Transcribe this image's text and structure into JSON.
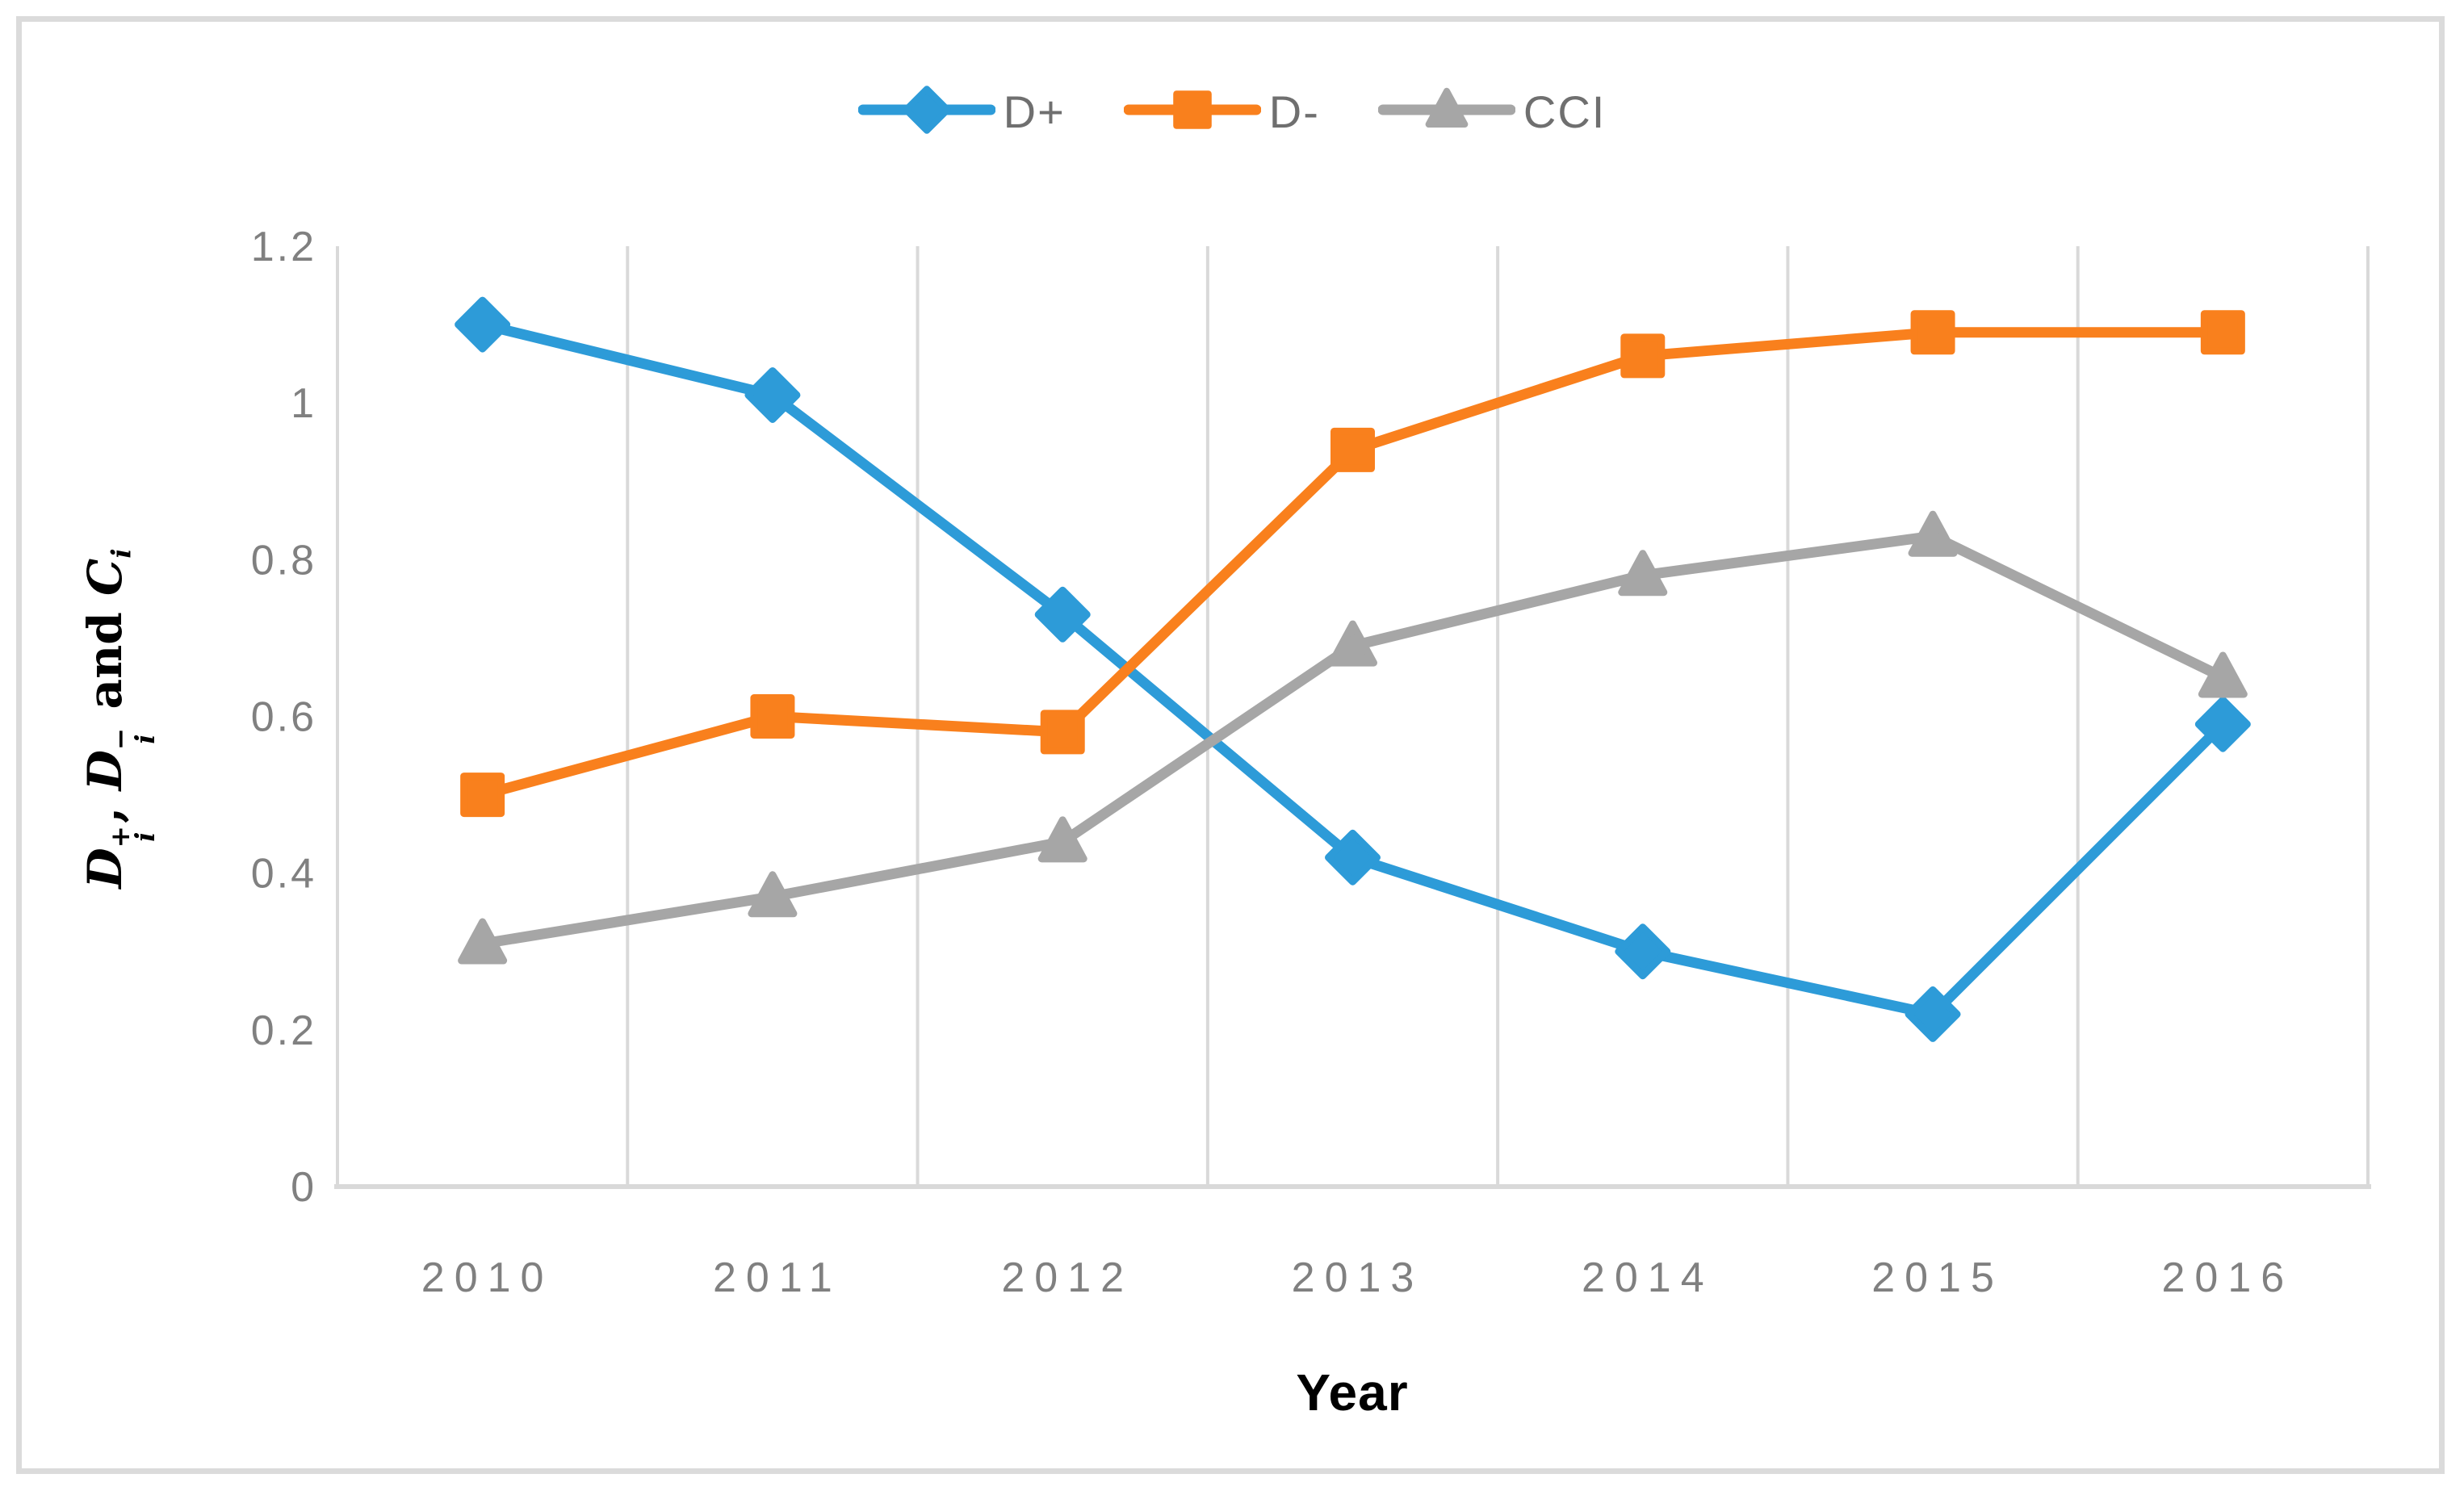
{
  "figure": {
    "background_color": "#FFFFFF",
    "border_color": "#DBDBDB"
  },
  "chart_data": {
    "type": "line",
    "title": "",
    "xlabel": "Year",
    "ylabel": "Di+, Di- and Ci",
    "ylabel_parts": [
      {
        "style": "var",
        "text": "D"
      },
      {
        "style": "stack",
        "sup": "+",
        "sub": "i"
      },
      {
        "style": "plain",
        "text": ", "
      },
      {
        "style": "var",
        "text": "D"
      },
      {
        "style": "stack",
        "sup": "−",
        "sub": "i"
      },
      {
        "style": "plain",
        "text": " and "
      },
      {
        "style": "var",
        "text": "C"
      },
      {
        "style": "sub",
        "text": "i"
      }
    ],
    "categories": [
      "2010",
      "2011",
      "2012",
      "2013",
      "2014",
      "2015",
      "2016"
    ],
    "series": [
      {
        "name": "D+",
        "marker": "diamond",
        "color": "#2D9BD8",
        "values": [
          1.1,
          1.01,
          0.73,
          0.42,
          0.3,
          0.22,
          0.59
        ]
      },
      {
        "name": "D-",
        "marker": "square",
        "color": "#F9801D",
        "values": [
          0.5,
          0.6,
          0.58,
          0.94,
          1.06,
          1.09,
          1.09
        ]
      },
      {
        "name": "CCI",
        "marker": "triangle",
        "color": "#A6A6A6",
        "values": [
          0.31,
          0.37,
          0.44,
          0.69,
          0.78,
          0.83,
          0.65
        ]
      }
    ],
    "ylim": [
      0,
      1.2
    ],
    "yticks": {
      "values": [
        0,
        0.2,
        0.4,
        0.6,
        0.8,
        1,
        1.2
      ],
      "labels": [
        "0",
        "0.2",
        "0.4",
        "0.6",
        "0.8",
        "1",
        "1.2"
      ]
    },
    "grid": "vertical-only",
    "legend_position": "top-center",
    "axis_color": "#D9D9D9",
    "gridline_color": "#D9D9D9",
    "tick_label_color": "#808080",
    "legend_text_color": "#6F6F6F"
  }
}
